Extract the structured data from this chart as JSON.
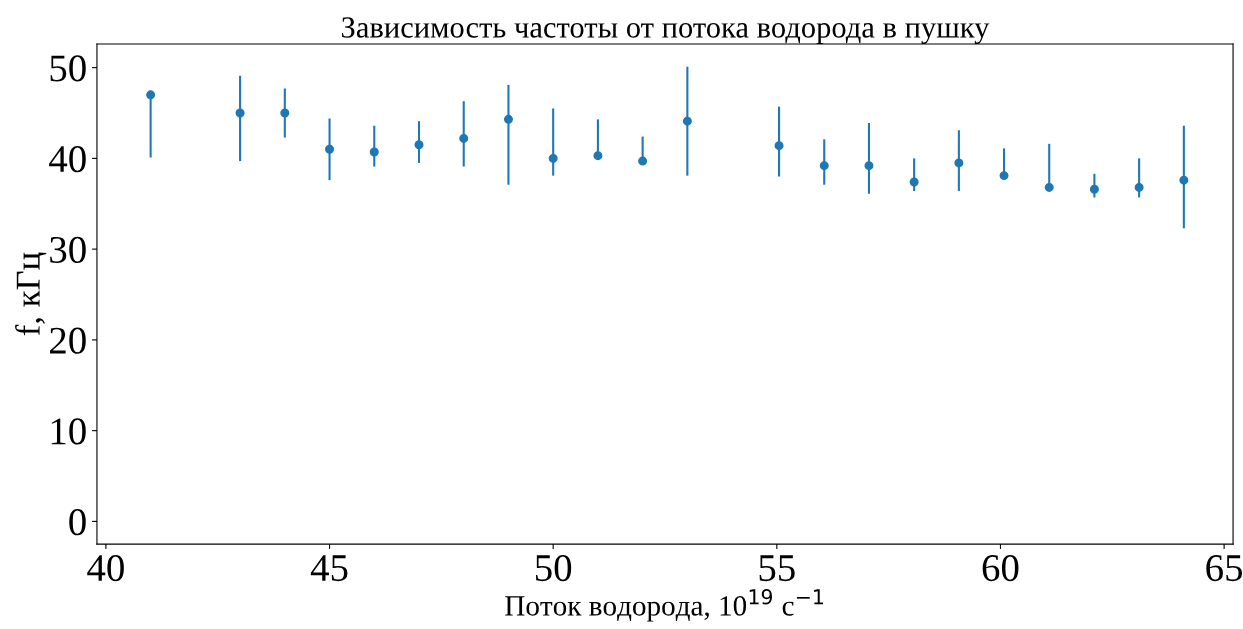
{
  "chart_data": {
    "type": "scatter",
    "title": "Зависимость частоты от потока водорода в пушку",
    "xlabel": "Поток водорода, 10$^{19}$ с$^{−1}$",
    "ylabel": "f, кГц",
    "x": [
      41,
      43,
      44,
      45,
      46,
      47,
      48,
      49,
      50,
      51,
      52,
      53,
      55.05,
      56.06,
      57.06,
      58.07,
      59.07,
      60.08,
      61.09,
      62.1,
      63.1,
      64.1
    ],
    "series": [
      {
        "color": "#1f77b4",
        "values": [
          47.0,
          45.0,
          45.0,
          41.0,
          40.7,
          41.5,
          42.2,
          44.3,
          40.0,
          40.3,
          39.7,
          44.1,
          41.4,
          39.2,
          39.2,
          37.4,
          39.5,
          38.1,
          36.8,
          36.6,
          36.8,
          37.6
        ],
        "errors": [
          [
            40.1,
            47.0
          ],
          [
            39.7,
            49.1
          ],
          [
            42.3,
            47.7
          ],
          [
            37.6,
            44.4
          ],
          [
            39.1,
            43.6
          ],
          [
            39.5,
            44.1
          ],
          [
            39.1,
            46.3
          ],
          [
            37.1,
            48.1
          ],
          [
            38.1,
            45.5
          ],
          [
            40.1,
            44.3
          ],
          [
            39.7,
            42.4
          ],
          [
            38.1,
            50.1
          ],
          [
            38.0,
            45.7
          ],
          [
            37.1,
            42.1
          ],
          [
            36.1,
            43.9
          ],
          [
            36.4,
            40.0
          ],
          [
            36.4,
            43.1
          ],
          [
            38.0,
            41.1
          ],
          [
            36.7,
            41.6
          ],
          [
            35.7,
            38.3
          ],
          [
            35.7,
            40.0
          ],
          [
            32.3,
            43.6
          ]
        ]
      }
    ],
    "xlim": [
      39.8,
      65.2
    ],
    "ylim": [
      -2.5,
      52.6
    ],
    "xticks": [
      40,
      45,
      50,
      55,
      60,
      65
    ],
    "yticks": [
      0,
      10,
      20,
      30,
      40,
      50
    ],
    "marker": "circle",
    "grid": false,
    "legend": false
  }
}
